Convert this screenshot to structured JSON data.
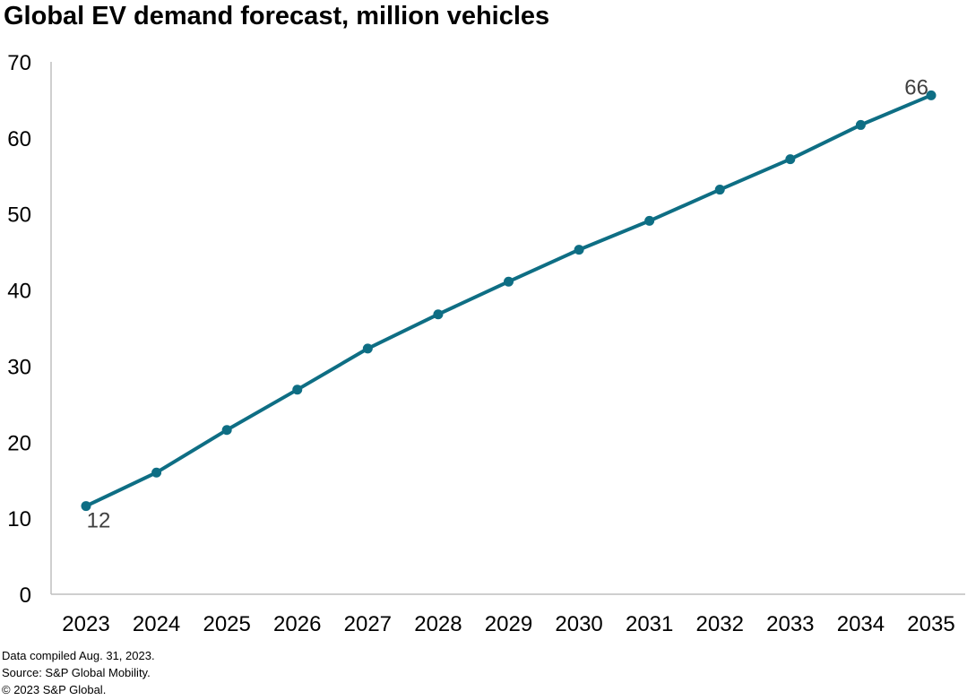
{
  "chart_data": {
    "type": "line",
    "title": "Global EV demand forecast, million vehicles",
    "x": [
      "2023",
      "2024",
      "2025",
      "2026",
      "2027",
      "2028",
      "2029",
      "2030",
      "2031",
      "2032",
      "2033",
      "2034",
      "2035"
    ],
    "series": [
      {
        "values": [
          11.6,
          16.0,
          21.6,
          26.9,
          32.3,
          36.8,
          41.1,
          45.3,
          49.1,
          53.2,
          57.2,
          61.7,
          65.6
        ],
        "color": "#0e6e84"
      }
    ],
    "data_labels": [
      {
        "index": 0,
        "text": "12"
      },
      {
        "index": 12,
        "text": "66"
      }
    ],
    "yticks": [
      "0",
      "10",
      "20",
      "30",
      "40",
      "50",
      "60",
      "70"
    ],
    "ylim": [
      0,
      70
    ],
    "grid": false,
    "legend": "none"
  },
  "footnotes": {
    "compiled": "Data compiled Aug. 31, 2023.",
    "source": "Source: S&P Global Mobility.",
    "copyright": "© 2023 S&P Global."
  }
}
